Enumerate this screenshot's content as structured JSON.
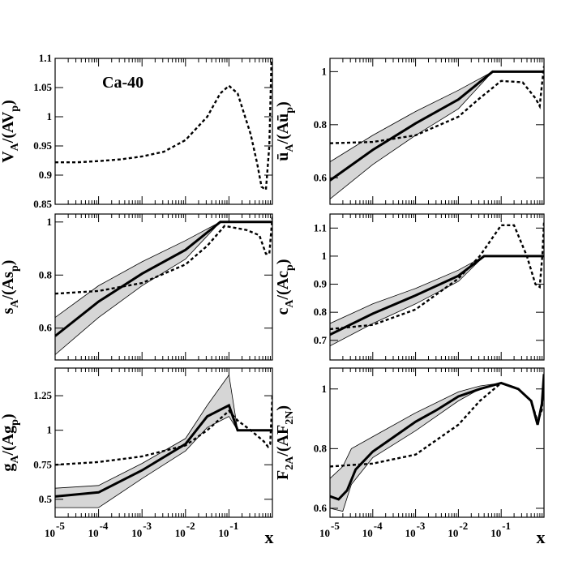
{
  "chart_data": [
    {
      "id": "VA",
      "type": "line",
      "ylabel": {
        "main": "V",
        "sub": "A",
        "mid": "/(AV",
        "sub2": "p",
        "end": ")"
      },
      "annotation": "Ca-40",
      "ylim": [
        0.85,
        1.1
      ],
      "yticks": [
        0.85,
        0.9,
        0.95,
        1.0,
        1.05,
        1.1
      ],
      "ytick_labels": [
        "0.85",
        "0.9",
        "0.95",
        "1",
        "1.05",
        "1.1"
      ],
      "xlim": [
        -5.0,
        0.0
      ],
      "xtick_labels": [],
      "band": null,
      "central": null,
      "dashed": [
        [
          -5.0,
          0.922
        ],
        [
          -4.5,
          0.922
        ],
        [
          -4.0,
          0.924
        ],
        [
          -3.5,
          0.927
        ],
        [
          -3.0,
          0.932
        ],
        [
          -2.5,
          0.94
        ],
        [
          -2.0,
          0.96
        ],
        [
          -1.5,
          1.0
        ],
        [
          -1.2,
          1.04
        ],
        [
          -1.0,
          1.053
        ],
        [
          -0.8,
          1.04
        ],
        [
          -0.5,
          0.97
        ],
        [
          -0.35,
          0.92
        ],
        [
          -0.25,
          0.88
        ],
        [
          -0.15,
          0.875
        ],
        [
          -0.07,
          0.95
        ],
        [
          -0.02,
          1.1
        ]
      ]
    },
    {
      "id": "UA",
      "type": "line",
      "ylabel": {
        "main": "ū",
        "sub": "A",
        "mid": "/(Aū",
        "sub2": "p",
        "end": ")"
      },
      "ylim": [
        0.5,
        1.05
      ],
      "yticks": [
        0.6,
        0.8,
        1.0
      ],
      "ytick_labels": [
        "0.6",
        "0.8",
        "1"
      ],
      "xlim": [
        -5.0,
        0.0
      ],
      "xtick_labels": [],
      "band": {
        "upper": [
          [
            -5.0,
            0.66
          ],
          [
            -4.0,
            0.76
          ],
          [
            -3.0,
            0.85
          ],
          [
            -2.0,
            0.93
          ],
          [
            -1.2,
            1.0
          ],
          [
            0.0,
            1.0
          ]
        ],
        "lower": [
          [
            -5.0,
            0.52
          ],
          [
            -4.0,
            0.65
          ],
          [
            -3.0,
            0.76
          ],
          [
            -2.0,
            0.86
          ],
          [
            -1.2,
            1.0
          ],
          [
            0.0,
            1.0
          ]
        ]
      },
      "central": [
        [
          -5.0,
          0.59
        ],
        [
          -4.0,
          0.705
        ],
        [
          -3.0,
          0.805
        ],
        [
          -2.0,
          0.895
        ],
        [
          -1.2,
          1.0
        ],
        [
          0.0,
          1.0
        ]
      ],
      "dashed": [
        [
          -5.0,
          0.73
        ],
        [
          -4.0,
          0.735
        ],
        [
          -3.0,
          0.76
        ],
        [
          -2.0,
          0.83
        ],
        [
          -1.5,
          0.9
        ],
        [
          -1.0,
          0.965
        ],
        [
          -0.5,
          0.96
        ],
        [
          -0.2,
          0.9
        ],
        [
          -0.1,
          0.87
        ],
        [
          -0.05,
          0.95
        ],
        [
          0.0,
          1.02
        ]
      ]
    },
    {
      "id": "SA",
      "type": "line",
      "ylabel": {
        "main": "s",
        "sub": "A",
        "mid": "/(As",
        "sub2": "p",
        "end": ")"
      },
      "ylim": [
        0.48,
        1.03
      ],
      "yticks": [
        0.6,
        0.8,
        1.0
      ],
      "ytick_labels": [
        "0.6",
        "0.8",
        "1"
      ],
      "xlim": [
        -5.0,
        0.0
      ],
      "xtick_labels": [],
      "band": {
        "upper": [
          [
            -5.0,
            0.64
          ],
          [
            -4.0,
            0.76
          ],
          [
            -3.0,
            0.85
          ],
          [
            -2.0,
            0.93
          ],
          [
            -1.2,
            1.0
          ],
          [
            0.0,
            1.0
          ]
        ],
        "lower": [
          [
            -5.0,
            0.5
          ],
          [
            -4.0,
            0.64
          ],
          [
            -3.0,
            0.76
          ],
          [
            -2.0,
            0.86
          ],
          [
            -1.2,
            1.0
          ],
          [
            0.0,
            1.0
          ]
        ]
      },
      "central": [
        [
          -5.0,
          0.57
        ],
        [
          -4.0,
          0.7
        ],
        [
          -3.0,
          0.805
        ],
        [
          -2.0,
          0.895
        ],
        [
          -1.2,
          1.0
        ],
        [
          0.0,
          1.0
        ]
      ],
      "dashed": [
        [
          -5.0,
          0.73
        ],
        [
          -4.0,
          0.74
        ],
        [
          -3.0,
          0.77
        ],
        [
          -2.0,
          0.84
        ],
        [
          -1.5,
          0.91
        ],
        [
          -1.1,
          0.985
        ],
        [
          -0.6,
          0.97
        ],
        [
          -0.3,
          0.95
        ],
        [
          -0.15,
          0.88
        ],
        [
          -0.07,
          0.88
        ],
        [
          0.0,
          1.02
        ]
      ]
    },
    {
      "id": "CA",
      "type": "line",
      "ylabel": {
        "main": "c",
        "sub": "A",
        "mid": "/(Ac",
        "sub2": "p",
        "end": ")"
      },
      "ylim": [
        0.63,
        1.15
      ],
      "yticks": [
        0.7,
        0.8,
        0.9,
        1.0,
        1.1
      ],
      "ytick_labels": [
        "0.7",
        "0.8",
        "0.9",
        "1",
        "1.1"
      ],
      "xlim": [
        -5.0,
        0.0
      ],
      "xtick_labels": [],
      "band": {
        "upper": [
          [
            -5.0,
            0.76
          ],
          [
            -4.0,
            0.83
          ],
          [
            -3.0,
            0.885
          ],
          [
            -2.0,
            0.95
          ],
          [
            -1.4,
            1.0
          ],
          [
            0.0,
            1.0
          ]
        ],
        "lower": [
          [
            -5.0,
            0.68
          ],
          [
            -4.0,
            0.76
          ],
          [
            -3.0,
            0.83
          ],
          [
            -2.0,
            0.91
          ],
          [
            -1.4,
            1.0
          ],
          [
            0.0,
            1.0
          ]
        ]
      },
      "central": [
        [
          -5.0,
          0.72
        ],
        [
          -4.0,
          0.795
        ],
        [
          -3.0,
          0.86
        ],
        [
          -2.0,
          0.93
        ],
        [
          -1.4,
          1.0
        ],
        [
          0.0,
          1.0
        ]
      ],
      "dashed": [
        [
          -5.0,
          0.74
        ],
        [
          -4.0,
          0.755
        ],
        [
          -3.0,
          0.81
        ],
        [
          -2.0,
          0.92
        ],
        [
          -1.5,
          1.0
        ],
        [
          -1.0,
          1.11
        ],
        [
          -0.7,
          1.11
        ],
        [
          -0.4,
          1.0
        ],
        [
          -0.2,
          0.9
        ],
        [
          -0.1,
          0.89
        ],
        [
          -0.04,
          1.0
        ],
        [
          0.0,
          1.12
        ]
      ]
    },
    {
      "id": "GA",
      "type": "line",
      "ylabel": {
        "main": "g",
        "sub": "A",
        "mid": "/(Ag",
        "sub2": "p",
        "end": ")"
      },
      "ylim": [
        0.37,
        1.45
      ],
      "yticks": [
        0.5,
        0.75,
        1.0,
        1.25
      ],
      "ytick_labels": [
        "0.5",
        "0.75",
        "1",
        "1.25"
      ],
      "xlim": [
        -5.0,
        0.0
      ],
      "xtick_labels": [
        "10",
        "10",
        "10",
        "10",
        "10"
      ],
      "xtick_exps": [
        "-5",
        "-4",
        "-3",
        "-2",
        "-1"
      ],
      "xlabel": "x",
      "band": {
        "upper": [
          [
            -5.0,
            0.58
          ],
          [
            -4.0,
            0.6
          ],
          [
            -3.0,
            0.76
          ],
          [
            -2.0,
            0.94
          ],
          [
            -1.5,
            1.18
          ],
          [
            -1.0,
            1.4
          ],
          [
            -0.8,
            1.0
          ],
          [
            0.0,
            1.0
          ]
        ],
        "lower": [
          [
            -5.0,
            0.44
          ],
          [
            -4.0,
            0.44
          ],
          [
            -3.0,
            0.65
          ],
          [
            -2.0,
            0.85
          ],
          [
            -1.5,
            1.02
          ],
          [
            -1.0,
            1.1
          ],
          [
            -0.8,
            1.0
          ],
          [
            0.0,
            1.0
          ]
        ]
      },
      "central": [
        [
          -5.0,
          0.52
        ],
        [
          -4.0,
          0.55
        ],
        [
          -3.0,
          0.71
        ],
        [
          -2.0,
          0.9
        ],
        [
          -1.5,
          1.1
        ],
        [
          -1.0,
          1.18
        ],
        [
          -0.8,
          1.0
        ],
        [
          0.0,
          1.0
        ]
      ],
      "dashed": [
        [
          -5.0,
          0.75
        ],
        [
          -4.0,
          0.77
        ],
        [
          -3.0,
          0.81
        ],
        [
          -2.0,
          0.89
        ],
        [
          -1.5,
          1.0
        ],
        [
          -1.0,
          1.14
        ],
        [
          -0.8,
          1.07
        ],
        [
          -0.5,
          1.0
        ],
        [
          -0.2,
          0.92
        ],
        [
          -0.1,
          0.88
        ],
        [
          -0.05,
          0.9
        ],
        [
          0.0,
          1.25
        ]
      ]
    },
    {
      "id": "F2A",
      "type": "line",
      "ylabel": {
        "main": "F",
        "sub": "2A",
        "mid": "/(AF",
        "sub2": "2N",
        "end": ")"
      },
      "ylim": [
        0.57,
        1.07
      ],
      "yticks": [
        0.6,
        0.8,
        1.0
      ],
      "ytick_labels": [
        "0.6",
        "0.8",
        "1"
      ],
      "xlim": [
        -5.0,
        0.0
      ],
      "xtick_labels": [
        "10",
        "10",
        "10",
        "10",
        "10"
      ],
      "xtick_exps": [
        "-5",
        "-4",
        "-3",
        "-2",
        "-1"
      ],
      "xlabel": "x",
      "band": {
        "upper": [
          [
            -5.0,
            0.7
          ],
          [
            -4.7,
            0.74
          ],
          [
            -4.5,
            0.8
          ],
          [
            -4.0,
            0.84
          ],
          [
            -3.0,
            0.92
          ],
          [
            -2.0,
            0.99
          ],
          [
            -1.5,
            1.01
          ],
          [
            -1.0,
            1.02
          ],
          [
            -0.6,
            1.0
          ],
          [
            -0.3,
            0.96
          ],
          [
            -0.15,
            0.89
          ],
          [
            -0.05,
            0.95
          ],
          [
            0.0,
            1.05
          ]
        ],
        "lower": [
          [
            -5.0,
            0.6
          ],
          [
            -4.7,
            0.59
          ],
          [
            -4.5,
            0.68
          ],
          [
            -4.0,
            0.77
          ],
          [
            -3.0,
            0.86
          ],
          [
            -2.0,
            0.96
          ],
          [
            -1.5,
            1.0
          ],
          [
            -1.0,
            1.02
          ],
          [
            -0.6,
            1.0
          ],
          [
            -0.3,
            0.96
          ],
          [
            -0.15,
            0.88
          ],
          [
            -0.05,
            0.95
          ],
          [
            0.0,
            1.05
          ]
        ]
      },
      "central": [
        [
          -5.0,
          0.64
        ],
        [
          -4.8,
          0.63
        ],
        [
          -4.6,
          0.66
        ],
        [
          -4.4,
          0.73
        ],
        [
          -4.0,
          0.79
        ],
        [
          -3.5,
          0.84
        ],
        [
          -3.0,
          0.89
        ],
        [
          -2.5,
          0.93
        ],
        [
          -2.0,
          0.975
        ],
        [
          -1.5,
          1.0
        ],
        [
          -1.0,
          1.02
        ],
        [
          -0.6,
          1.0
        ],
        [
          -0.3,
          0.96
        ],
        [
          -0.15,
          0.88
        ],
        [
          -0.05,
          0.95
        ],
        [
          0.0,
          1.05
        ]
      ],
      "dashed": [
        [
          -5.0,
          0.74
        ],
        [
          -4.0,
          0.75
        ],
        [
          -3.0,
          0.78
        ],
        [
          -2.0,
          0.88
        ],
        [
          -1.5,
          0.96
        ],
        [
          -1.0,
          1.02
        ],
        [
          -0.6,
          1.0
        ],
        [
          -0.3,
          0.96
        ],
        [
          -0.15,
          0.89
        ],
        [
          -0.05,
          0.93
        ],
        [
          0.0,
          1.05
        ]
      ]
    }
  ]
}
